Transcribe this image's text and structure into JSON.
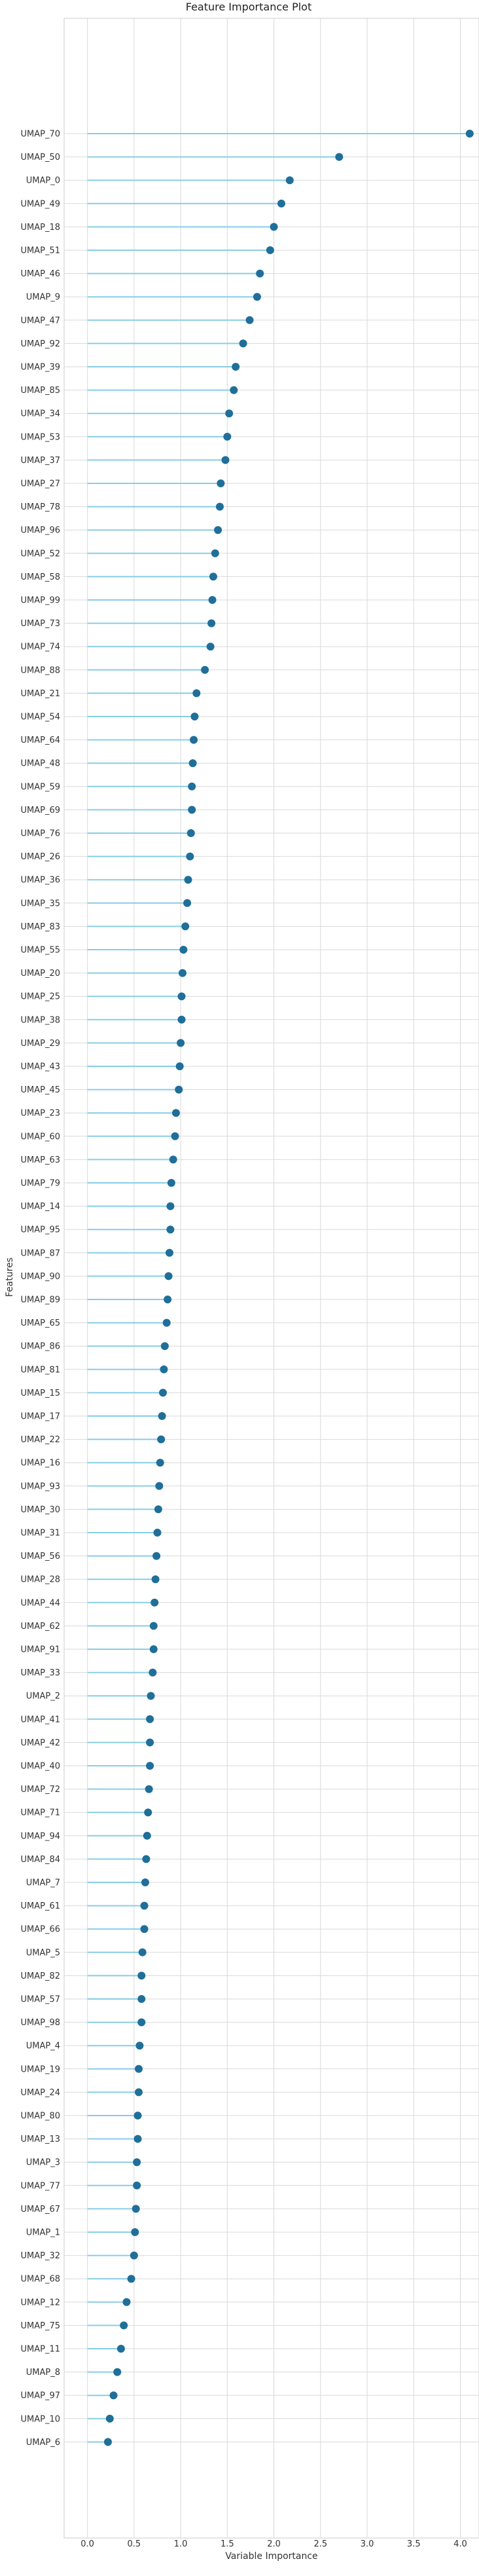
{
  "chart_data": {
    "type": "lollipop",
    "title": "Feature Importance Plot",
    "xlabel": "Variable Importance",
    "ylabel": "Features",
    "xlim": [
      -0.25,
      4.2
    ],
    "xticks": [
      "0.0",
      "0.5",
      "1.0",
      "1.5",
      "2.0",
      "2.5",
      "3.0",
      "3.5",
      "4.0"
    ],
    "grid": true,
    "colors": {
      "stem": "#87cde6",
      "marker": "#1f6f9a",
      "grid": "#d9d9d9",
      "frame": "#cccccc"
    },
    "categories": [
      "UMAP_70",
      "UMAP_50",
      "UMAP_0",
      "UMAP_49",
      "UMAP_18",
      "UMAP_51",
      "UMAP_46",
      "UMAP_9",
      "UMAP_47",
      "UMAP_92",
      "UMAP_39",
      "UMAP_85",
      "UMAP_34",
      "UMAP_53",
      "UMAP_37",
      "UMAP_27",
      "UMAP_78",
      "UMAP_96",
      "UMAP_52",
      "UMAP_58",
      "UMAP_99",
      "UMAP_73",
      "UMAP_74",
      "UMAP_88",
      "UMAP_21",
      "UMAP_54",
      "UMAP_64",
      "UMAP_48",
      "UMAP_59",
      "UMAP_69",
      "UMAP_76",
      "UMAP_26",
      "UMAP_36",
      "UMAP_35",
      "UMAP_83",
      "UMAP_55",
      "UMAP_20",
      "UMAP_25",
      "UMAP_38",
      "UMAP_29",
      "UMAP_43",
      "UMAP_45",
      "UMAP_23",
      "UMAP_60",
      "UMAP_63",
      "UMAP_79",
      "UMAP_14",
      "UMAP_95",
      "UMAP_87",
      "UMAP_90",
      "UMAP_89",
      "UMAP_65",
      "UMAP_86",
      "UMAP_81",
      "UMAP_15",
      "UMAP_17",
      "UMAP_22",
      "UMAP_16",
      "UMAP_93",
      "UMAP_30",
      "UMAP_31",
      "UMAP_56",
      "UMAP_28",
      "UMAP_44",
      "UMAP_62",
      "UMAP_91",
      "UMAP_33",
      "UMAP_2",
      "UMAP_41",
      "UMAP_42",
      "UMAP_40",
      "UMAP_72",
      "UMAP_71",
      "UMAP_94",
      "UMAP_84",
      "UMAP_7",
      "UMAP_61",
      "UMAP_66",
      "UMAP_5",
      "UMAP_82",
      "UMAP_57",
      "UMAP_98",
      "UMAP_4",
      "UMAP_19",
      "UMAP_24",
      "UMAP_80",
      "UMAP_13",
      "UMAP_3",
      "UMAP_77",
      "UMAP_67",
      "UMAP_1",
      "UMAP_32",
      "UMAP_68",
      "UMAP_12",
      "UMAP_75",
      "UMAP_11",
      "UMAP_8",
      "UMAP_97",
      "UMAP_10",
      "UMAP_6"
    ],
    "values": [
      4.1,
      2.7,
      2.17,
      2.08,
      2.0,
      1.96,
      1.85,
      1.82,
      1.74,
      1.67,
      1.59,
      1.57,
      1.52,
      1.5,
      1.48,
      1.43,
      1.42,
      1.4,
      1.37,
      1.35,
      1.34,
      1.33,
      1.32,
      1.26,
      1.17,
      1.15,
      1.14,
      1.13,
      1.12,
      1.12,
      1.11,
      1.1,
      1.08,
      1.07,
      1.05,
      1.03,
      1.02,
      1.01,
      1.01,
      1.0,
      0.99,
      0.98,
      0.95,
      0.94,
      0.92,
      0.9,
      0.89,
      0.89,
      0.88,
      0.87,
      0.86,
      0.85,
      0.83,
      0.82,
      0.81,
      0.8,
      0.79,
      0.78,
      0.77,
      0.76,
      0.75,
      0.74,
      0.73,
      0.72,
      0.71,
      0.71,
      0.7,
      0.68,
      0.67,
      0.67,
      0.67,
      0.66,
      0.65,
      0.64,
      0.63,
      0.62,
      0.61,
      0.61,
      0.59,
      0.58,
      0.58,
      0.58,
      0.56,
      0.55,
      0.55,
      0.54,
      0.54,
      0.53,
      0.53,
      0.52,
      0.51,
      0.5,
      0.47,
      0.42,
      0.39,
      0.36,
      0.32,
      0.28,
      0.24,
      0.22
    ]
  }
}
